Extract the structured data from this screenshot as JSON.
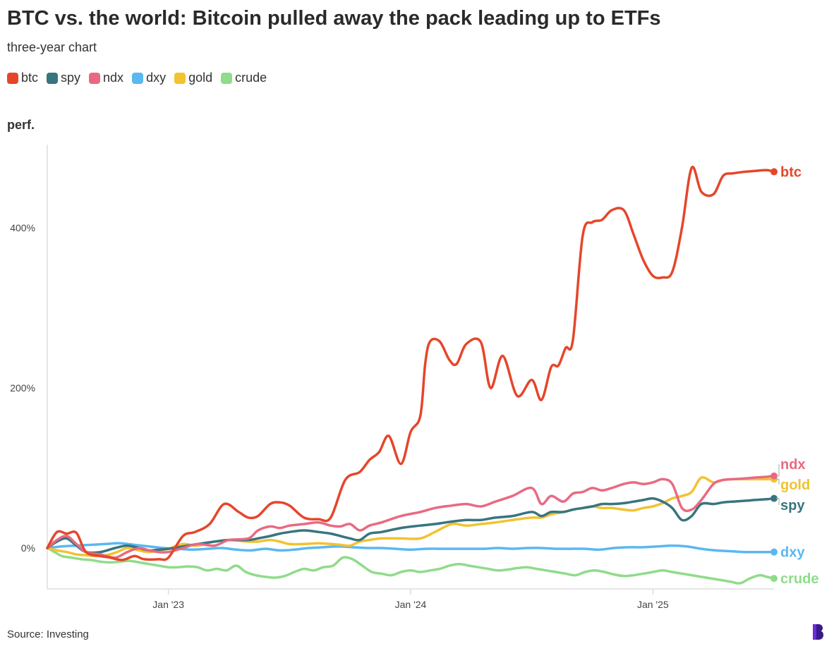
{
  "chart_data": {
    "type": "line",
    "title": "BTC vs. the world: Bitcoin pulled away the pack leading up to ETFs",
    "subtitle": "three-year chart",
    "ylabel": "perf.",
    "source": "Source: Investing",
    "x_ticks": [
      "Jan '23",
      "Jan '24",
      "Jan '25"
    ],
    "x_tick_times": [
      2023.0,
      2024.0,
      2025.0
    ],
    "y_ticks": [
      0,
      200,
      400
    ],
    "y_tick_labels": [
      "0%",
      "200%",
      "400%"
    ],
    "xlim": [
      2022.5,
      2025.5
    ],
    "ylim": [
      -50,
      500
    ],
    "grid": false,
    "legend": "top-left",
    "series": [
      {
        "name": "btc",
        "color": "#e5462a",
        "x": [
          2022.5,
          2022.54,
          2022.58,
          2022.62,
          2022.66,
          2022.72,
          2022.76,
          2022.81,
          2022.86,
          2022.9,
          2022.96,
          2023.0,
          2023.06,
          2023.11,
          2023.17,
          2023.23,
          2023.29,
          2023.33,
          2023.37,
          2023.42,
          2023.46,
          2023.5,
          2023.56,
          2023.62,
          2023.67,
          2023.73,
          2023.79,
          2023.83,
          2023.87,
          2023.91,
          2023.96,
          2024.0,
          2024.04,
          2024.06,
          2024.08,
          2024.12,
          2024.16,
          2024.19,
          2024.23,
          2024.29,
          2024.33,
          2024.38,
          2024.44,
          2024.5,
          2024.54,
          2024.58,
          2024.61,
          2024.64,
          2024.67,
          2024.71,
          2024.75,
          2024.79,
          2024.83,
          2024.88,
          2024.92,
          2024.96,
          2025.0,
          2025.04,
          2025.08,
          2025.12,
          2025.16,
          2025.2,
          2025.25,
          2025.29,
          2025.33,
          2025.38,
          2025.42,
          2025.47,
          2025.5
        ],
        "values": [
          0,
          20,
          18,
          19,
          -5,
          -10,
          -12,
          -15,
          -10,
          -14,
          -14,
          -12,
          15,
          20,
          30,
          55,
          45,
          38,
          40,
          55,
          57,
          53,
          38,
          36,
          38,
          85,
          95,
          110,
          120,
          140,
          105,
          145,
          165,
          230,
          258,
          258,
          235,
          230,
          255,
          257,
          200,
          240,
          190,
          210,
          185,
          226,
          228,
          250,
          260,
          390,
          407,
          410,
          422,
          422,
          392,
          360,
          340,
          338,
          345,
          400,
          475,
          445,
          442,
          465,
          468,
          470,
          471,
          472,
          470
        ]
      },
      {
        "name": "ndx",
        "color": "#e86a82",
        "x": [
          2022.5,
          2022.54,
          2022.58,
          2022.62,
          2022.66,
          2022.72,
          2022.78,
          2022.83,
          2022.88,
          2022.92,
          2022.96,
          2023.0,
          2023.06,
          2023.12,
          2023.19,
          2023.25,
          2023.33,
          2023.37,
          2023.42,
          2023.46,
          2023.5,
          2023.56,
          2023.62,
          2023.67,
          2023.71,
          2023.75,
          2023.79,
          2023.83,
          2023.88,
          2023.96,
          2024.04,
          2024.1,
          2024.17,
          2024.23,
          2024.29,
          2024.35,
          2024.42,
          2024.5,
          2024.54,
          2024.58,
          2024.63,
          2024.67,
          2024.71,
          2024.75,
          2024.79,
          2024.83,
          2024.88,
          2024.92,
          2024.96,
          2025.0,
          2025.04,
          2025.08,
          2025.12,
          2025.16,
          2025.2,
          2025.25,
          2025.29,
          2025.33,
          2025.38,
          2025.42,
          2025.47,
          2025.5
        ],
        "values": [
          0,
          10,
          15,
          5,
          -5,
          -8,
          -12,
          -5,
          0,
          -3,
          -5,
          -5,
          0,
          5,
          3,
          10,
          12,
          22,
          27,
          25,
          28,
          30,
          32,
          28,
          27,
          30,
          22,
          28,
          32,
          40,
          45,
          50,
          53,
          55,
          52,
          58,
          65,
          75,
          55,
          65,
          58,
          68,
          70,
          75,
          72,
          75,
          80,
          82,
          80,
          82,
          86,
          80,
          50,
          48,
          60,
          80,
          85,
          86,
          87,
          88,
          89,
          90
        ]
      },
      {
        "name": "gold",
        "color": "#f2c230",
        "x": [
          2022.5,
          2022.54,
          2022.58,
          2022.62,
          2022.66,
          2022.72,
          2022.78,
          2022.83,
          2022.88,
          2022.92,
          2022.96,
          2023.0,
          2023.06,
          2023.12,
          2023.19,
          2023.25,
          2023.33,
          2023.37,
          2023.42,
          2023.46,
          2023.5,
          2023.56,
          2023.62,
          2023.67,
          2023.71,
          2023.75,
          2023.79,
          2023.83,
          2023.88,
          2023.96,
          2024.04,
          2024.1,
          2024.17,
          2024.23,
          2024.29,
          2024.35,
          2024.42,
          2024.5,
          2024.54,
          2024.58,
          2024.63,
          2024.67,
          2024.71,
          2024.75,
          2024.79,
          2024.83,
          2024.88,
          2024.92,
          2024.96,
          2025.0,
          2025.04,
          2025.08,
          2025.12,
          2025.16,
          2025.2,
          2025.25,
          2025.29,
          2025.33,
          2025.38,
          2025.42,
          2025.47,
          2025.5
        ],
        "values": [
          0,
          -3,
          -5,
          -8,
          -9,
          -10,
          -6,
          0,
          -3,
          -5,
          -3,
          -1,
          5,
          3,
          8,
          10,
          8,
          8,
          10,
          8,
          5,
          5,
          6,
          5,
          4,
          3,
          8,
          10,
          12,
          12,
          12,
          20,
          30,
          28,
          30,
          32,
          35,
          38,
          38,
          42,
          45,
          48,
          50,
          52,
          50,
          50,
          48,
          47,
          50,
          52,
          56,
          62,
          65,
          70,
          88,
          82,
          85,
          86,
          86,
          86,
          86,
          86
        ]
      },
      {
        "name": "spy",
        "color": "#37757f",
        "x": [
          2022.5,
          2022.54,
          2022.58,
          2022.62,
          2022.66,
          2022.72,
          2022.78,
          2022.83,
          2022.88,
          2022.92,
          2022.96,
          2023.0,
          2023.06,
          2023.12,
          2023.19,
          2023.25,
          2023.33,
          2023.37,
          2023.42,
          2023.46,
          2023.5,
          2023.56,
          2023.62,
          2023.67,
          2023.71,
          2023.75,
          2023.79,
          2023.83,
          2023.88,
          2023.96,
          2024.04,
          2024.1,
          2024.17,
          2024.23,
          2024.29,
          2024.35,
          2024.42,
          2024.5,
          2024.54,
          2024.58,
          2024.63,
          2024.67,
          2024.71,
          2024.75,
          2024.79,
          2024.83,
          2024.88,
          2024.92,
          2024.96,
          2025.0,
          2025.04,
          2025.08,
          2025.12,
          2025.16,
          2025.2,
          2025.25,
          2025.29,
          2025.33,
          2025.38,
          2025.42,
          2025.47,
          2025.5
        ],
        "values": [
          0,
          8,
          12,
          3,
          -5,
          -5,
          0,
          3,
          0,
          -3,
          -2,
          -1,
          2,
          5,
          8,
          10,
          10,
          12,
          15,
          18,
          20,
          22,
          20,
          18,
          15,
          12,
          10,
          18,
          20,
          25,
          28,
          30,
          33,
          35,
          35,
          38,
          40,
          45,
          40,
          45,
          45,
          48,
          50,
          52,
          55,
          55,
          56,
          58,
          60,
          62,
          58,
          50,
          35,
          40,
          55,
          55,
          57,
          58,
          59,
          60,
          61,
          62
        ]
      },
      {
        "name": "dxy",
        "color": "#5ab8f0",
        "x": [
          2022.5,
          2022.56,
          2022.62,
          2022.68,
          2022.74,
          2022.8,
          2022.86,
          2022.92,
          2022.98,
          2023.04,
          2023.1,
          2023.16,
          2023.22,
          2023.28,
          2023.34,
          2023.4,
          2023.46,
          2023.52,
          2023.58,
          2023.64,
          2023.7,
          2023.76,
          2023.82,
          2023.88,
          2023.94,
          2024.0,
          2024.06,
          2024.12,
          2024.18,
          2024.24,
          2024.3,
          2024.36,
          2024.42,
          2024.48,
          2024.54,
          2024.6,
          2024.66,
          2024.72,
          2024.78,
          2024.84,
          2024.9,
          2024.96,
          2025.02,
          2025.08,
          2025.14,
          2025.2,
          2025.26,
          2025.32,
          2025.38,
          2025.44,
          2025.5
        ],
        "values": [
          0,
          2,
          3,
          4,
          5,
          6,
          4,
          2,
          0,
          -1,
          -2,
          -1,
          0,
          -2,
          -3,
          -1,
          -3,
          -2,
          0,
          1,
          2,
          1,
          0,
          0,
          -1,
          -2,
          -1,
          -1,
          -1,
          -1,
          -1,
          0,
          -1,
          0,
          0,
          -1,
          -1,
          -1,
          -2,
          0,
          1,
          1,
          2,
          3,
          2,
          -1,
          -3,
          -4,
          -5,
          -5,
          -5
        ]
      },
      {
        "name": "crude",
        "color": "#8fdc8a",
        "x": [
          2022.5,
          2022.53,
          2022.56,
          2022.6,
          2022.64,
          2022.68,
          2022.72,
          2022.76,
          2022.8,
          2022.84,
          2022.88,
          2022.92,
          2022.96,
          2023.0,
          2023.04,
          2023.08,
          2023.12,
          2023.16,
          2023.2,
          2023.24,
          2023.28,
          2023.32,
          2023.36,
          2023.4,
          2023.44,
          2023.48,
          2023.52,
          2023.56,
          2023.6,
          2023.64,
          2023.68,
          2023.72,
          2023.76,
          2023.8,
          2023.84,
          2023.88,
          2023.92,
          2023.96,
          2024.0,
          2024.04,
          2024.08,
          2024.12,
          2024.16,
          2024.2,
          2024.24,
          2024.28,
          2024.32,
          2024.36,
          2024.4,
          2024.44,
          2024.48,
          2024.52,
          2024.56,
          2024.6,
          2024.64,
          2024.68,
          2024.72,
          2024.76,
          2024.8,
          2024.84,
          2024.88,
          2024.92,
          2024.96,
          2025.0,
          2025.04,
          2025.08,
          2025.12,
          2025.16,
          2025.2,
          2025.24,
          2025.28,
          2025.32,
          2025.36,
          2025.4,
          2025.44,
          2025.47,
          2025.5
        ],
        "values": [
          0,
          -5,
          -10,
          -12,
          -14,
          -15,
          -17,
          -18,
          -17,
          -16,
          -18,
          -20,
          -22,
          -24,
          -24,
          -23,
          -24,
          -28,
          -26,
          -28,
          -22,
          -30,
          -34,
          -36,
          -37,
          -35,
          -30,
          -26,
          -28,
          -24,
          -22,
          -12,
          -14,
          -22,
          -30,
          -32,
          -34,
          -30,
          -28,
          -30,
          -28,
          -26,
          -22,
          -20,
          -22,
          -24,
          -26,
          -28,
          -27,
          -25,
          -24,
          -26,
          -28,
          -30,
          -32,
          -34,
          -30,
          -28,
          -30,
          -33,
          -35,
          -34,
          -32,
          -30,
          -28,
          -30,
          -32,
          -34,
          -36,
          -38,
          -40,
          -42,
          -44,
          -38,
          -34,
          -36,
          -38
        ]
      }
    ],
    "end_labels": [
      {
        "series": "btc",
        "text": "btc"
      },
      {
        "series": "ndx",
        "text": "ndx"
      },
      {
        "series": "gold",
        "text": "gold"
      },
      {
        "series": "spy",
        "text": "spy"
      },
      {
        "series": "dxy",
        "text": "dxy"
      },
      {
        "series": "crude",
        "text": "crude"
      }
    ]
  },
  "colors": {
    "axis": "#dddddd",
    "tick_text": "#444444",
    "logo": "#3a1a8a"
  }
}
